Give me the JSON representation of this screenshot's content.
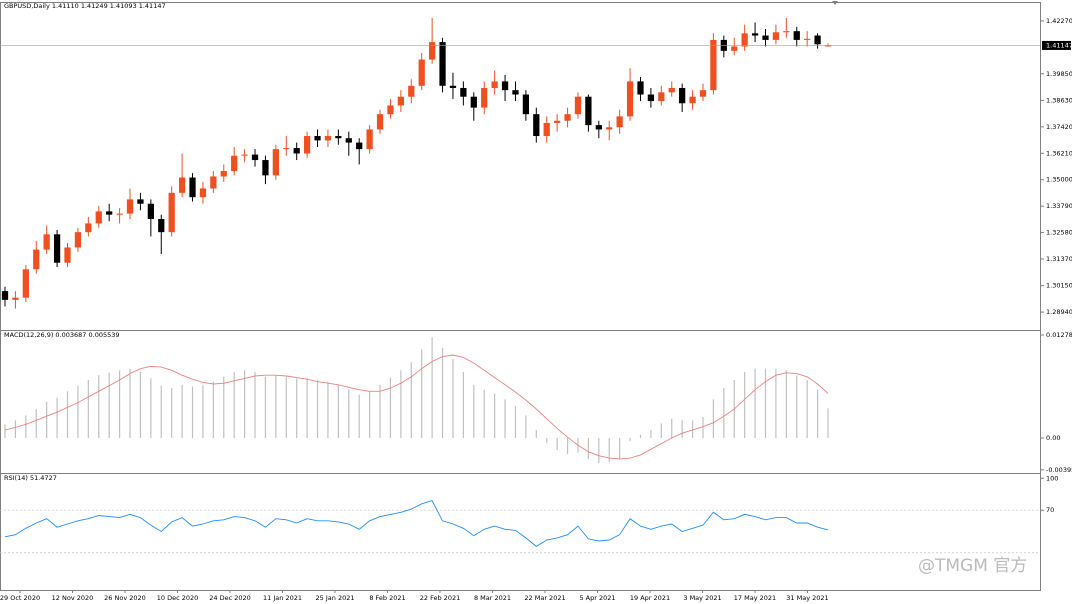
{
  "chart_data": [
    {
      "type": "candlestick",
      "title": "GBPUSD,Daily 1.41110 1.41249 1.41093 1.41147",
      "up_color": "#f05020",
      "down_color": "#000000",
      "ohlc": [
        [
          1.299,
          1.301,
          1.292,
          1.295
        ],
        [
          1.295,
          1.299,
          1.291,
          1.296
        ],
        [
          1.296,
          1.311,
          1.294,
          1.309
        ],
        [
          1.309,
          1.322,
          1.307,
          1.318
        ],
        [
          1.318,
          1.329,
          1.316,
          1.325
        ],
        [
          1.325,
          1.327,
          1.31,
          1.312
        ],
        [
          1.312,
          1.321,
          1.31,
          1.319
        ],
        [
          1.319,
          1.328,
          1.317,
          1.326
        ],
        [
          1.326,
          1.333,
          1.324,
          1.33
        ],
        [
          1.33,
          1.338,
          1.328,
          1.3355
        ],
        [
          1.3355,
          1.339,
          1.331,
          1.334
        ],
        [
          1.334,
          1.337,
          1.33,
          1.3345
        ],
        [
          1.3345,
          1.346,
          1.332,
          1.341
        ],
        [
          1.341,
          1.344,
          1.336,
          1.339
        ],
        [
          1.339,
          1.341,
          1.324,
          1.332
        ],
        [
          1.332,
          1.334,
          1.316,
          1.326
        ],
        [
          1.326,
          1.347,
          1.324,
          1.344
        ],
        [
          1.344,
          1.362,
          1.342,
          1.351
        ],
        [
          1.351,
          1.353,
          1.34,
          1.342
        ],
        [
          1.342,
          1.349,
          1.339,
          1.346
        ],
        [
          1.346,
          1.354,
          1.344,
          1.3515
        ],
        [
          1.3515,
          1.357,
          1.349,
          1.354
        ],
        [
          1.354,
          1.365,
          1.352,
          1.361
        ],
        [
          1.361,
          1.364,
          1.358,
          1.3615
        ],
        [
          1.3615,
          1.364,
          1.356,
          1.359
        ],
        [
          1.359,
          1.361,
          1.348,
          1.352
        ],
        [
          1.352,
          1.366,
          1.35,
          1.364
        ],
        [
          1.364,
          1.37,
          1.361,
          1.3645
        ],
        [
          1.3645,
          1.367,
          1.359,
          1.362
        ],
        [
          1.362,
          1.372,
          1.36,
          1.37
        ],
        [
          1.37,
          1.373,
          1.365,
          1.368
        ],
        [
          1.368,
          1.373,
          1.365,
          1.37
        ],
        [
          1.37,
          1.373,
          1.366,
          1.369
        ],
        [
          1.369,
          1.372,
          1.361,
          1.367
        ],
        [
          1.367,
          1.369,
          1.357,
          1.364
        ],
        [
          1.364,
          1.375,
          1.362,
          1.373
        ],
        [
          1.373,
          1.382,
          1.371,
          1.38
        ],
        [
          1.38,
          1.387,
          1.378,
          1.384
        ],
        [
          1.384,
          1.391,
          1.381,
          1.388
        ],
        [
          1.388,
          1.396,
          1.385,
          1.393
        ],
        [
          1.393,
          1.408,
          1.391,
          1.405
        ],
        [
          1.405,
          1.424,
          1.403,
          1.413
        ],
        [
          1.413,
          1.415,
          1.39,
          1.393
        ],
        [
          1.393,
          1.399,
          1.387,
          1.392
        ],
        [
          1.392,
          1.395,
          1.384,
          1.388
        ],
        [
          1.388,
          1.39,
          1.377,
          1.383
        ],
        [
          1.383,
          1.395,
          1.38,
          1.392
        ],
        [
          1.392,
          1.4,
          1.389,
          1.395
        ],
        [
          1.395,
          1.398,
          1.386,
          1.391
        ],
        [
          1.391,
          1.395,
          1.386,
          1.389
        ],
        [
          1.389,
          1.391,
          1.377,
          1.38
        ],
        [
          1.38,
          1.383,
          1.367,
          1.37
        ],
        [
          1.37,
          1.379,
          1.367,
          1.376
        ],
        [
          1.376,
          1.38,
          1.372,
          1.377
        ],
        [
          1.377,
          1.383,
          1.374,
          1.38
        ],
        [
          1.38,
          1.39,
          1.378,
          1.388
        ],
        [
          1.388,
          1.389,
          1.372,
          1.375
        ],
        [
          1.375,
          1.377,
          1.369,
          1.373
        ],
        [
          1.373,
          1.377,
          1.368,
          1.374
        ],
        [
          1.374,
          1.382,
          1.371,
          1.379
        ],
        [
          1.379,
          1.401,
          1.377,
          1.395
        ],
        [
          1.395,
          1.397,
          1.386,
          1.389
        ],
        [
          1.389,
          1.392,
          1.383,
          1.386
        ],
        [
          1.386,
          1.393,
          1.384,
          1.39
        ],
        [
          1.39,
          1.395,
          1.388,
          1.392
        ],
        [
          1.392,
          1.394,
          1.381,
          1.385
        ],
        [
          1.385,
          1.391,
          1.382,
          1.388
        ],
        [
          1.388,
          1.394,
          1.386,
          1.391
        ],
        [
          1.391,
          1.417,
          1.389,
          1.414
        ],
        [
          1.414,
          1.416,
          1.406,
          1.409
        ],
        [
          1.409,
          1.415,
          1.407,
          1.411
        ],
        [
          1.411,
          1.421,
          1.409,
          1.417
        ],
        [
          1.417,
          1.422,
          1.413,
          1.416
        ],
        [
          1.416,
          1.419,
          1.411,
          1.414
        ],
        [
          1.414,
          1.421,
          1.412,
          1.4175
        ],
        [
          1.4175,
          1.424,
          1.415,
          1.418
        ],
        [
          1.418,
          1.42,
          1.411,
          1.414
        ],
        [
          1.414,
          1.418,
          1.411,
          1.4145
        ],
        [
          1.416,
          1.417,
          1.41,
          1.412
        ],
        [
          1.4111,
          1.41249,
          1.41093,
          1.41147
        ]
      ],
      "ylim": [
        1.2812,
        1.4309
      ],
      "yticks": [
        {
          "value": 1.4227,
          "label": "1.42270"
        },
        {
          "value": 1.3985,
          "label": "1.39850"
        },
        {
          "value": 1.3863,
          "label": "1.38630"
        },
        {
          "value": 1.3742,
          "label": "1.37420"
        },
        {
          "value": 1.3621,
          "label": "1.36210"
        },
        {
          "value": 1.35,
          "label": "1.35000"
        },
        {
          "value": 1.3379,
          "label": "1.33790"
        },
        {
          "value": 1.3258,
          "label": "1.32580"
        },
        {
          "value": 1.3137,
          "label": "1.31370"
        },
        {
          "value": 1.3015,
          "label": "1.30150"
        },
        {
          "value": 1.2894,
          "label": "1.28940"
        }
      ],
      "last_price": {
        "value": 1.41147,
        "label": "1.41147"
      },
      "x_labels": [
        "29 Oct 2020",
        "12 Nov 2020",
        "26 Nov 2020",
        "10 Dec 2020",
        "24 Dec 2020",
        "11 Jan 2021",
        "25 Jan 2021",
        "8 Feb 2021",
        "22 Feb 2021",
        "8 Mar 2021",
        "22 Mar 2021",
        "5 Apr 2021",
        "19 Apr 2021",
        "3 May 2021",
        "17 May 2021",
        "31 May 2021"
      ],
      "watermark": "@TMGM 官方"
    },
    {
      "type": "macd",
      "title": "MACD(12,26,9) 0.003687 0.005539",
      "histogram_color": "#c0c0c0",
      "signal_color": "#f08080",
      "histogram": [
        0.0017,
        0.0022,
        0.0028,
        0.0036,
        0.0045,
        0.005,
        0.0058,
        0.0065,
        0.0072,
        0.0078,
        0.0081,
        0.0084,
        0.0086,
        0.0082,
        0.0074,
        0.0065,
        0.0062,
        0.0066,
        0.0064,
        0.0066,
        0.007,
        0.0076,
        0.0082,
        0.0084,
        0.0082,
        0.0076,
        0.0078,
        0.0076,
        0.0074,
        0.0074,
        0.0072,
        0.007,
        0.0066,
        0.006,
        0.0054,
        0.0058,
        0.0066,
        0.0075,
        0.0084,
        0.0094,
        0.011,
        0.0125,
        0.0112,
        0.0098,
        0.0082,
        0.0066,
        0.006,
        0.0055,
        0.0048,
        0.004,
        0.0028,
        0.001,
        -0.0006,
        -0.0015,
        -0.002,
        -0.0018,
        -0.0026,
        -0.0031,
        -0.003,
        -0.0026,
        -0.0004,
        0.0004,
        0.001,
        0.0018,
        0.0024,
        0.0022,
        0.0022,
        0.0026,
        0.0048,
        0.0062,
        0.0072,
        0.0082,
        0.0086,
        0.0086,
        0.0086,
        0.0084,
        0.0078,
        0.0072,
        0.006,
        0.003687
      ],
      "signal": [
        0.001,
        0.0013,
        0.0017,
        0.0022,
        0.0027,
        0.0032,
        0.0038,
        0.0044,
        0.0051,
        0.0058,
        0.0065,
        0.0072,
        0.008,
        0.0086,
        0.0089,
        0.0088,
        0.0084,
        0.0078,
        0.0073,
        0.0069,
        0.0067,
        0.0068,
        0.0071,
        0.0074,
        0.0077,
        0.0078,
        0.0078,
        0.0077,
        0.0075,
        0.0073,
        0.007,
        0.0068,
        0.0066,
        0.0063,
        0.006,
        0.0058,
        0.0058,
        0.0062,
        0.0068,
        0.0076,
        0.0086,
        0.0095,
        0.0101,
        0.0103,
        0.01,
        0.0093,
        0.0084,
        0.0075,
        0.0066,
        0.0057,
        0.0047,
        0.0036,
        0.0024,
        0.0012,
        0.0001,
        -0.0009,
        -0.0017,
        -0.0022,
        -0.0025,
        -0.0026,
        -0.0025,
        -0.0021,
        -0.0014,
        -0.0007,
        0.0,
        0.0006,
        0.001,
        0.0014,
        0.0019,
        0.0027,
        0.0036,
        0.0048,
        0.006,
        0.007,
        0.0078,
        0.0081,
        0.008,
        0.0076,
        0.0067,
        0.005539
      ],
      "ylim": [
        -0.004345,
        0.013283
      ],
      "yticks": [
        0.012786,
        {
          "value": 0,
          "label": "0.00"
        },
        -0.003952
      ]
    },
    {
      "type": "rsi",
      "title": "RSI(14) 51.4727",
      "color": "#1e90ff",
      "values": [
        45,
        47,
        53,
        58,
        62,
        54,
        57,
        60,
        62,
        65,
        64,
        63,
        66,
        63,
        56,
        50,
        59,
        63,
        55,
        57,
        60,
        61,
        64,
        63,
        60,
        54,
        62,
        61,
        58,
        62,
        60,
        60,
        59,
        57,
        52,
        60,
        64,
        66,
        68,
        71,
        76,
        79,
        60,
        57,
        53,
        46,
        52,
        55,
        52,
        51,
        44,
        36,
        42,
        44,
        47,
        55,
        43,
        41,
        42,
        47,
        62,
        55,
        52,
        55,
        57,
        50,
        53,
        56,
        68,
        61,
        62,
        66,
        64,
        61,
        63,
        63,
        58,
        58,
        54,
        51.4727
      ],
      "ylim": [
        -5,
        104
      ],
      "yticks": [
        100,
        70
      ],
      "levels": [
        70,
        30
      ]
    }
  ]
}
